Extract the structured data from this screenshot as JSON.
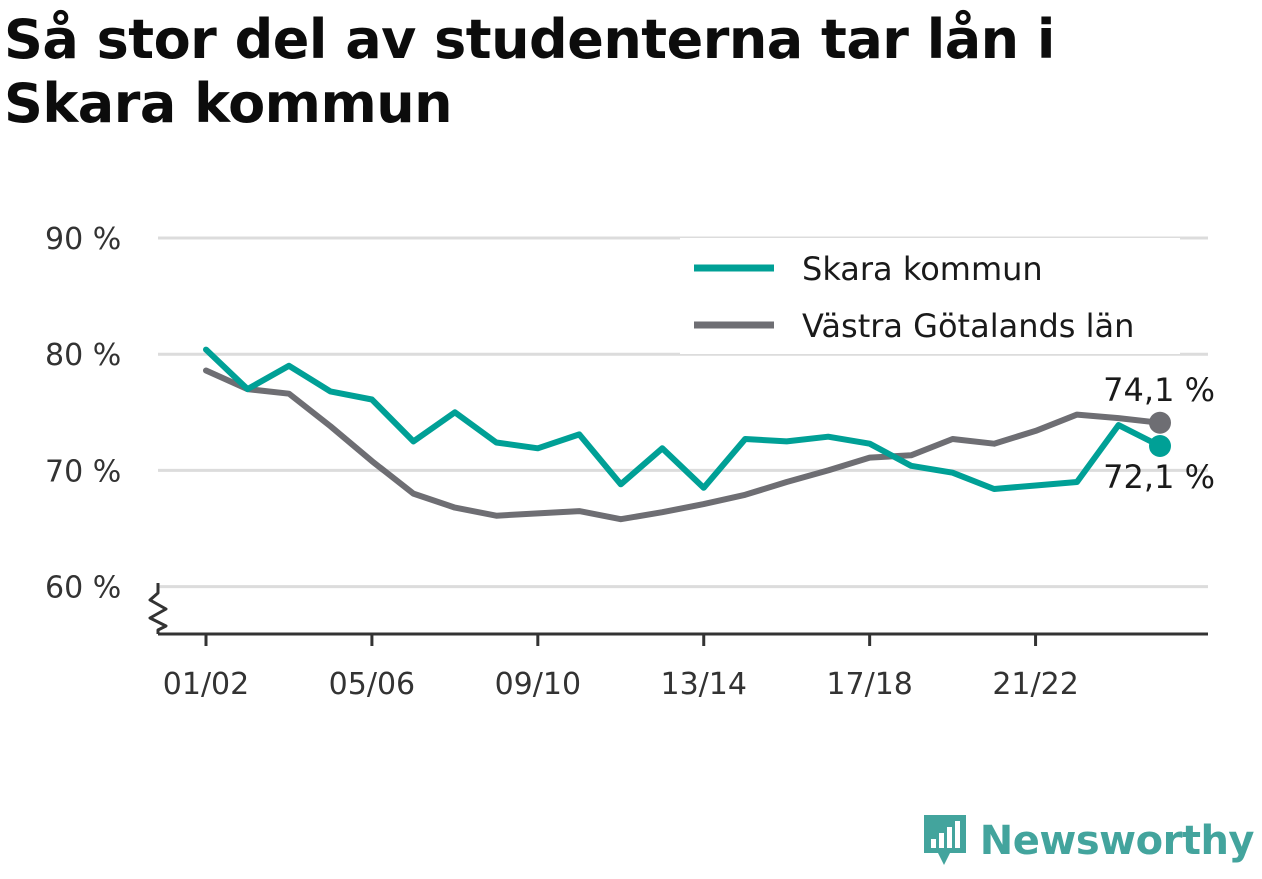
{
  "title": "Så stor del av studenterna tar lån i Skara kommun",
  "brand": {
    "name": "Newsworthy",
    "icon": "newsworthy-logo-icon",
    "color": "#43a49d"
  },
  "chart_data": {
    "type": "line",
    "x": [
      "01/02",
      "02/03",
      "03/04",
      "04/05",
      "05/06",
      "06/07",
      "07/08",
      "08/09",
      "09/10",
      "10/11",
      "11/12",
      "12/13",
      "13/14",
      "14/15",
      "15/16",
      "16/17",
      "17/18",
      "18/19",
      "19/20",
      "20/21",
      "21/22",
      "22/23",
      "23/24",
      "24/25"
    ],
    "x_tick_labels": [
      "01/02",
      "05/06",
      "09/10",
      "13/14",
      "17/18",
      "21/22"
    ],
    "y_tick_labels": [
      "60 %",
      "70 %",
      "80 %",
      "90 %"
    ],
    "y_ticks": [
      60,
      70,
      80,
      90
    ],
    "ylim": [
      56,
      90
    ],
    "y_axis_break": true,
    "grid": true,
    "legend_position": "top-right",
    "series": [
      {
        "name": "Skara kommun",
        "color": "#00a096",
        "values": [
          80.4,
          77.0,
          79.0,
          76.8,
          76.1,
          72.5,
          75.0,
          72.4,
          71.9,
          73.1,
          68.8,
          71.9,
          68.5,
          72.7,
          72.5,
          72.9,
          72.3,
          70.4,
          69.8,
          68.4,
          68.7,
          69.0,
          73.9,
          72.1
        ],
        "end_label": "72,1 %"
      },
      {
        "name": "Västra Götalands län",
        "color": "#6e6e73",
        "values": [
          78.6,
          77.0,
          76.6,
          73.8,
          70.8,
          68.0,
          66.8,
          66.1,
          66.3,
          66.5,
          65.8,
          66.4,
          67.1,
          67.9,
          69.0,
          70.0,
          71.1,
          71.3,
          72.7,
          72.3,
          73.4,
          74.8,
          74.5,
          74.1
        ],
        "end_label": "74,1 %"
      }
    ]
  }
}
